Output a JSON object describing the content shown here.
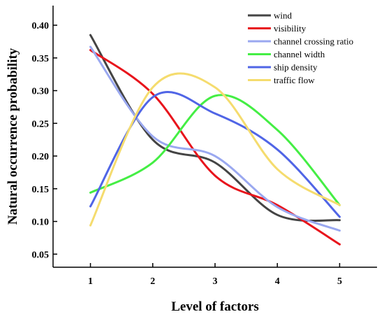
{
  "chart_data": {
    "type": "line",
    "xlabel": "Level of factors",
    "ylabel": "Natural occurrence probability",
    "x": [
      1,
      2,
      3,
      4,
      5
    ],
    "xlim": [
      0.4,
      5.6
    ],
    "ylim": [
      0.03,
      0.43
    ],
    "xticks": [
      1,
      2,
      3,
      4,
      5
    ],
    "yticks": [
      "0.05",
      "0.10",
      "0.15",
      "0.20",
      "0.25",
      "0.30",
      "0.35",
      "0.40"
    ],
    "grid": false,
    "legend_position": "top-right",
    "series": [
      {
        "name": "wind",
        "color": "#444444",
        "values": [
          0.385,
          0.225,
          0.19,
          0.11,
          0.102
        ]
      },
      {
        "name": "visibility",
        "color": "#e8141c",
        "values": [
          0.362,
          0.295,
          0.17,
          0.125,
          0.065
        ]
      },
      {
        "name": "channel crossing ratio",
        "color": "#9aa8f0",
        "values": [
          0.367,
          0.23,
          0.2,
          0.122,
          0.086
        ]
      },
      {
        "name": "channel width",
        "color": "#44ee44",
        "values": [
          0.144,
          0.19,
          0.292,
          0.24,
          0.125
        ]
      },
      {
        "name": "ship density",
        "color": "#5065e6",
        "values": [
          0.123,
          0.29,
          0.265,
          0.21,
          0.107
        ]
      },
      {
        "name": "traffic flow",
        "color": "#f5dc6e",
        "values": [
          0.094,
          0.305,
          0.305,
          0.18,
          0.125
        ]
      }
    ]
  }
}
